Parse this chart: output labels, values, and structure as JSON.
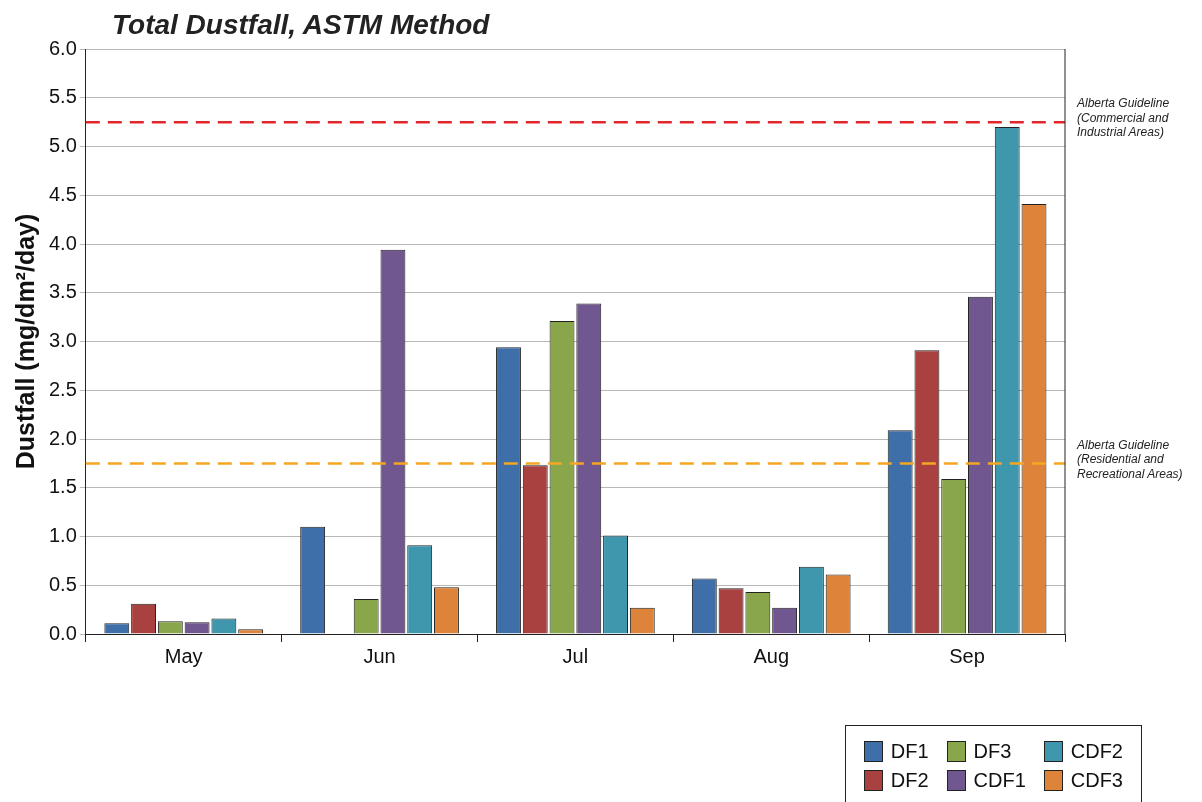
{
  "chart_data": {
    "type": "bar",
    "title": "Total Dustfall, ASTM Method",
    "ylabel": "Dustfall (mg/dm²/day)",
    "categories": [
      "May",
      "Jun",
      "Jul",
      "Aug",
      "Sep"
    ],
    "series": [
      {
        "name": "DF1",
        "color": "#3f6fa8",
        "values": [
          0.11,
          1.1,
          2.94,
          0.57,
          2.09
        ]
      },
      {
        "name": "DF2",
        "color": "#a8413f",
        "values": [
          0.31,
          null,
          1.73,
          0.47,
          2.91
        ]
      },
      {
        "name": "DF3",
        "color": "#89a64b",
        "values": [
          0.13,
          0.36,
          3.21,
          0.43,
          1.59
        ]
      },
      {
        "name": "CDF1",
        "color": "#71578f",
        "values": [
          0.12,
          3.94,
          3.39,
          0.27,
          3.46
        ]
      },
      {
        "name": "CDF2",
        "color": "#3f97ae",
        "values": [
          0.16,
          0.91,
          1.01,
          0.69,
          5.2
        ]
      },
      {
        "name": "CDF3",
        "color": "#de843a",
        "values": [
          0.05,
          0.48,
          0.27,
          0.61,
          4.41
        ]
      }
    ],
    "ylim": [
      0,
      6
    ],
    "yticks": [
      {
        "value": 0,
        "label": "0.0"
      },
      {
        "value": 0.5,
        "label": "0.5"
      },
      {
        "value": 1,
        "label": "1.0"
      },
      {
        "value": 1.5,
        "label": "1.5"
      },
      {
        "value": 2,
        "label": "2.0"
      },
      {
        "value": 2.5,
        "label": "2.5"
      },
      {
        "value": 3,
        "label": "3.0"
      },
      {
        "value": 3.5,
        "label": "3.5"
      },
      {
        "value": 4,
        "label": "4.0"
      },
      {
        "value": 4.5,
        "label": "4.5"
      },
      {
        "value": 5,
        "label": "5.0"
      },
      {
        "value": 5.5,
        "label": "5.5"
      },
      {
        "value": 6,
        "label": "6.0"
      }
    ],
    "ref_lines": [
      {
        "axis": "y",
        "value": 5.25,
        "label": "Alberta Guideline (Commercial and Industrial Areas)",
        "color": "#e3262b",
        "line_style": "dashed"
      },
      {
        "axis": "y",
        "value": 1.75,
        "label": "Alberta Guideline (Residential and Recreational Areas)",
        "color": "#f5a623",
        "line_style": "dashed"
      }
    ],
    "grid": "y",
    "legend": "bottom right"
  }
}
